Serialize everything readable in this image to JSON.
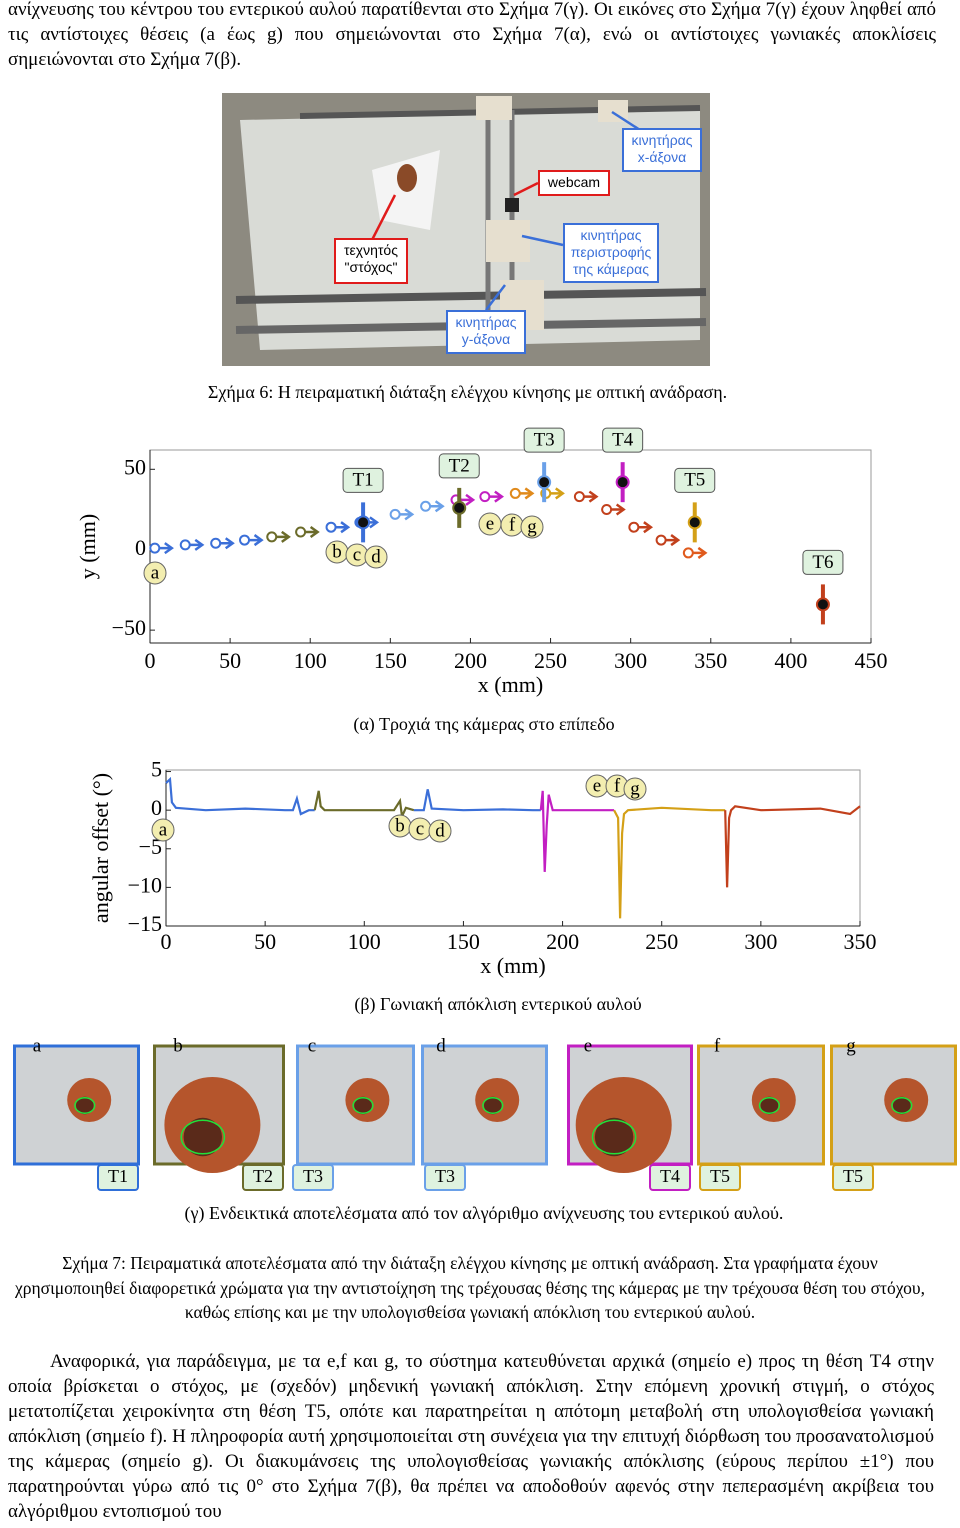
{
  "intro": "ανίχνευσης του κέντρου του εντερικού αυλού παρατίθενται στο Σχήμα 7(γ). Οι εικόνες στο Σχήμα 7(γ) έχουν ληφθεί από τις αντίστοιχες θέσεις (a έως g) που σημειώνονται στο Σχήμα 7(α), ενώ οι αντίστοιχες γωνιακές αποκλίσεις σημειώνονται στο Σχήμα 7(β).",
  "figure6": {
    "labels": {
      "webcam": "webcam",
      "x_motor": "κινητήρας\nx-άξονα",
      "target": "τεχνητός\n\"στόχος\"",
      "rot_motor": "κινητήρας\nπεριστροφής\nτης κάμερας",
      "y_motor": "κινητήρας\ny-άξονα"
    },
    "caption": "Σχήμα 6: Η πειραματική διάταξη ελέγχου κίνησης με οπτική ανάδραση."
  },
  "letters": [
    "a",
    "b",
    "c",
    "d",
    "e",
    "f",
    "g"
  ],
  "figure7a": {
    "xlabel": "x (mm)",
    "ylabel": "y (mm)",
    "xlim": [
      0,
      450
    ],
    "ylim": [
      -58,
      62
    ],
    "xticks": [
      0,
      50,
      100,
      150,
      200,
      250,
      300,
      350,
      400,
      450
    ],
    "yticks": [
      {
        "value": -50,
        "label": "−50"
      },
      0,
      50
    ],
    "camera": {
      "x": [
        3,
        22,
        41,
        59,
        76,
        94,
        113,
        131,
        153,
        172,
        191,
        209,
        228,
        247,
        268,
        285,
        302,
        319,
        336
      ],
      "y": [
        1,
        3,
        4,
        6,
        8,
        11,
        14,
        17,
        22,
        27,
        31,
        33,
        35,
        35,
        33,
        25,
        14,
        6,
        -2
      ],
      "colors": [
        "#3b6fd8",
        "#3b6fd8",
        "#3b6fd8",
        "#3b6fd8",
        "#6b6b2a",
        "#6b6b2a",
        "#3b6fd8",
        "#3b6fd8",
        "#6aa0e8",
        "#6aa0e8",
        "#c21fc2",
        "#c21fc2",
        "#e08a1c",
        "#d4a017",
        "#c2401c",
        "#c2401c",
        "#c2401c",
        "#c2401c",
        "#e05a1c"
      ]
    },
    "targets": {
      "names": [
        "T1",
        "T2",
        "T3",
        "T4",
        "T5",
        "T6"
      ],
      "x": [
        133,
        193,
        246,
        295,
        340,
        420
      ],
      "y": [
        17,
        26,
        42,
        42,
        17,
        -34
      ],
      "colors": [
        "#3b6fd8",
        "#6b6b2a",
        "#6aa0e8",
        "#c21fc2",
        "#d4a017",
        "#c2401c"
      ]
    },
    "caption": "(α) Τροχιά της κάμερας στο επίπεδο"
  },
  "figure7b": {
    "xlabel": "x (mm)",
    "ylabel": "angular offset (°)",
    "xlim": [
      0,
      350
    ],
    "ylim": [
      -15,
      5.2
    ],
    "xticks": [
      0,
      50,
      100,
      150,
      200,
      250,
      300,
      350
    ],
    "yticks": [
      {
        "value": -15,
        "label": "−15"
      },
      {
        "value": -10,
        "label": "−10"
      },
      {
        "value": -5,
        "label": "−5"
      },
      0,
      5
    ],
    "series": [
      {
        "color": "#3b6fd8",
        "x": [
          0,
          2,
          3,
          5,
          20,
          40,
          60,
          64,
          66,
          68,
          72,
          75
        ],
        "values": [
          3.5,
          4,
          1,
          0.3,
          0,
          0.2,
          0,
          0,
          1.5,
          -0.5,
          0,
          0
        ]
      },
      {
        "color": "#6b6b2a",
        "x": [
          75,
          77,
          78,
          80,
          100,
          115,
          118,
          119,
          121,
          125
        ],
        "values": [
          0,
          2.5,
          0.5,
          0,
          0,
          0,
          1.2,
          -0.8,
          0.3,
          0
        ]
      },
      {
        "color": "#3b6fd8",
        "x": [
          125,
          130,
          132,
          134,
          150,
          170,
          185,
          189
        ],
        "values": [
          0,
          0,
          2.7,
          0.2,
          0,
          0.1,
          0,
          0
        ]
      },
      {
        "color": "#c21fc2",
        "x": [
          189,
          190,
          191,
          192,
          193,
          195,
          200,
          226
        ],
        "values": [
          0,
          2.5,
          -8,
          -2,
          2,
          0,
          0,
          0
        ]
      },
      {
        "color": "#d4a017",
        "x": [
          226,
          228,
          229,
          230,
          231,
          233,
          250,
          275,
          282
        ],
        "values": [
          0,
          -1,
          -14,
          -3,
          -0.5,
          0,
          0.3,
          0,
          0
        ]
      },
      {
        "color": "#c2401c",
        "x": [
          282,
          283,
          284,
          285,
          287,
          300,
          330,
          345,
          350
        ],
        "values": [
          0,
          -10,
          -1,
          0,
          0.5,
          0,
          0.2,
          -0.5,
          0.5
        ]
      }
    ],
    "caption": "(β) Γωνιακή απόκλιση εντερικού αυλού"
  },
  "figure7c": {
    "targets": [
      "T1",
      "T2",
      "T3",
      "T3",
      "T4",
      "T5",
      "T5"
    ],
    "frame_colors": [
      "#2f6fd8",
      "#6b6b2a",
      "#6aa0e8",
      "#6aa0e8",
      "#c21fc2",
      "#d4a017",
      "#d4a017"
    ],
    "caption": "(γ) Ενδεικτικά αποτελέσματα από τον αλγόριθμο ανίχνευσης του εντερικού αυλού."
  },
  "figure7_caption": "Σχήμα 7: Πειραματικά αποτελέσματα από την διάταξη ελέγχου κίνησης με οπτική ανάδραση. Στα γραφήματα έχουν χρησιμοποιηθεί διαφορετικά χρώματα για την αντιστοίχηση της τρέχουσας θέσης της κάμερας με την τρέχουσα θέση του στόχου, καθώς επίσης και με την υπολογισθείσα γωνιακή απόκλιση του εντερικού αυλού.",
  "body": "Αναφορικά, για παράδειγμα, με τα e,f και g, το σύστημα κατευθύνεται αρχικά (σημείο e) προς τη θέση T4 στην οποία βρίσκεται ο στόχος, με (σχεδόν) μηδενική γωνιακή απόκλιση. Στην επόμενη χρονική στιγμή, ο στόχος μετατοπίζεται χειροκίνητα στη θέση T5, οπότε και παρατηρείται η απότομη μεταβολή στη υπολογισθείσα γωνιακή απόκλιση (σημείο f). Η πληροφορία αυτή χρησιμοποιείται στη συνέχεια για την επιτυχή διόρθωση του προσανατολισμού της κάμερας (σημείο g). Οι διακυμάνσεις της υπολογισθείσας γωνιακής απόκλισης (εύρους περίπου ±1°) που παρατηρούνται γύρω από τις 0° στο Σχήμα 7(β), θα πρέπει να αποδοθούν αφενός στην πεπερασμένη ακρίβεια του αλγόριθμου εντοπισμού του"
}
